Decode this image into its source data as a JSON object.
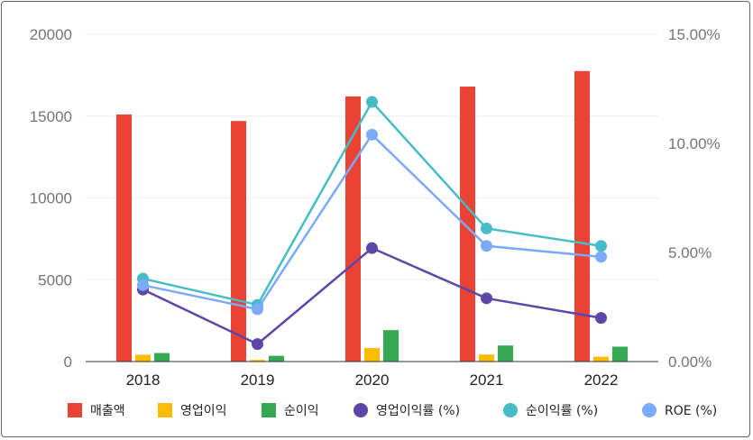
{
  "chart_data": {
    "type": "bar",
    "categories": [
      "2018",
      "2019",
      "2020",
      "2021",
      "2022"
    ],
    "bar_series": [
      {
        "name": "매출액",
        "values": [
          15100,
          14700,
          16200,
          16800,
          17750
        ],
        "color": "#ea4335"
      },
      {
        "name": "영업이익",
        "values": [
          420,
          100,
          830,
          430,
          300
        ],
        "color": "#fbbc04"
      },
      {
        "name": "순이익",
        "values": [
          520,
          350,
          1920,
          980,
          910
        ],
        "color": "#34a853"
      }
    ],
    "line_series": [
      {
        "name": "영업이익률 (%)",
        "values": [
          3.3,
          0.8,
          5.2,
          2.9,
          2.0
        ],
        "color": "#5c46a8"
      },
      {
        "name": "순이익률 (%)",
        "values": [
          3.8,
          2.6,
          11.9,
          6.1,
          5.3
        ],
        "color": "#46bdc6"
      },
      {
        "name": "ROE (%)",
        "values": [
          3.5,
          2.4,
          10.4,
          5.3,
          4.8
        ],
        "color": "#7baaf7"
      }
    ],
    "y_left": {
      "min": 0,
      "max": 20000,
      "ticks": [
        "0",
        "5000",
        "10000",
        "15000",
        "20000"
      ],
      "tick_values": [
        0,
        5000,
        10000,
        15000,
        20000
      ]
    },
    "y_right": {
      "min": 0,
      "max": 15,
      "ticks": [
        "0.00%",
        "5.00%",
        "10.00%",
        "15.00%"
      ],
      "tick_values": [
        0,
        5,
        10,
        15
      ]
    },
    "grid": true,
    "legend_position": "bottom",
    "title": "",
    "xlabel": "",
    "ylabel": ""
  }
}
